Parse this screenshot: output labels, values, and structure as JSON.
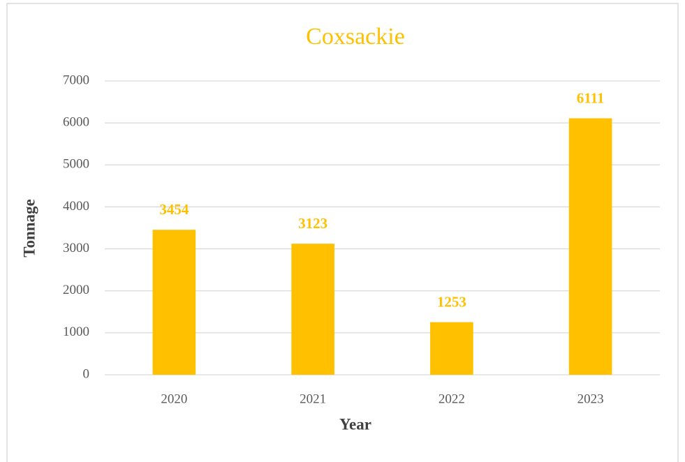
{
  "chart_data": {
    "type": "bar",
    "title": "Coxsackie",
    "x_label": "Year",
    "y_label": "Tonnage",
    "categories": [
      "2020",
      "2021",
      "2022",
      "2023"
    ],
    "values": [
      3454,
      3123,
      1253,
      6111
    ],
    "color": "#ffc000",
    "ylim": [
      0,
      7000
    ],
    "yticks": [
      0,
      1000,
      2000,
      3000,
      4000,
      5000,
      6000,
      7000
    ],
    "grid": true,
    "data_labels": true
  }
}
